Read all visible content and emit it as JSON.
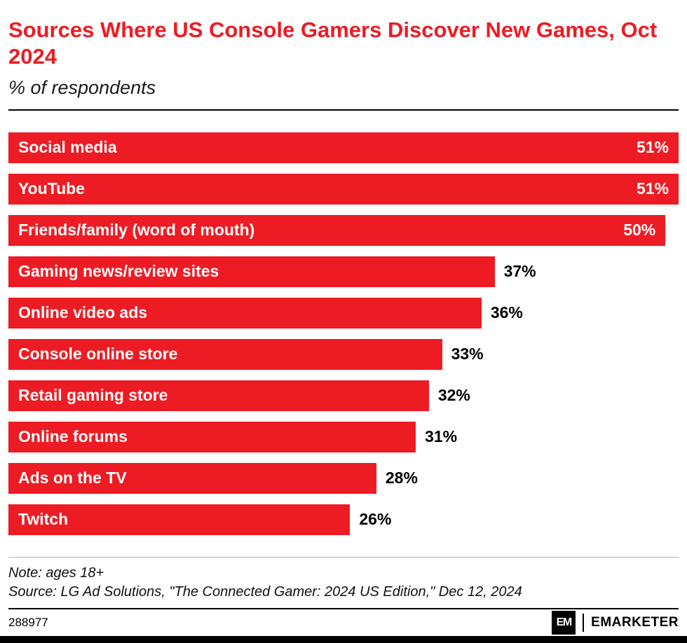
{
  "header": {
    "title": "Sources Where US Console Gamers Discover New Games, Oct 2024",
    "subtitle": "% of respondents"
  },
  "chart_data": {
    "type": "bar",
    "orientation": "horizontal",
    "title": "Sources Where US Console Gamers Discover New Games, Oct 2024",
    "subtitle": "% of respondents",
    "categories": [
      "Social media",
      "YouTube",
      "Friends/family (word of mouth)",
      "Gaming news/review sites",
      "Online video ads",
      "Console online store",
      "Retail gaming store",
      "Online forums",
      "Ads on the TV",
      "Twitch"
    ],
    "values": [
      51,
      51,
      50,
      37,
      36,
      33,
      32,
      31,
      28,
      26
    ],
    "value_suffix": "%",
    "xlim": [
      0,
      51
    ],
    "grid": false,
    "legend": "none",
    "bar_color": "#ED1C24"
  },
  "footnotes": {
    "note": "Note: ages 18+",
    "source": "Source: LG Ad Solutions, \"The Connected Gamer: 2024 US Edition,\" Dec 12, 2024"
  },
  "footer": {
    "chart_id": "288977",
    "logo_text": "EM",
    "brand": "EMARKETER"
  }
}
